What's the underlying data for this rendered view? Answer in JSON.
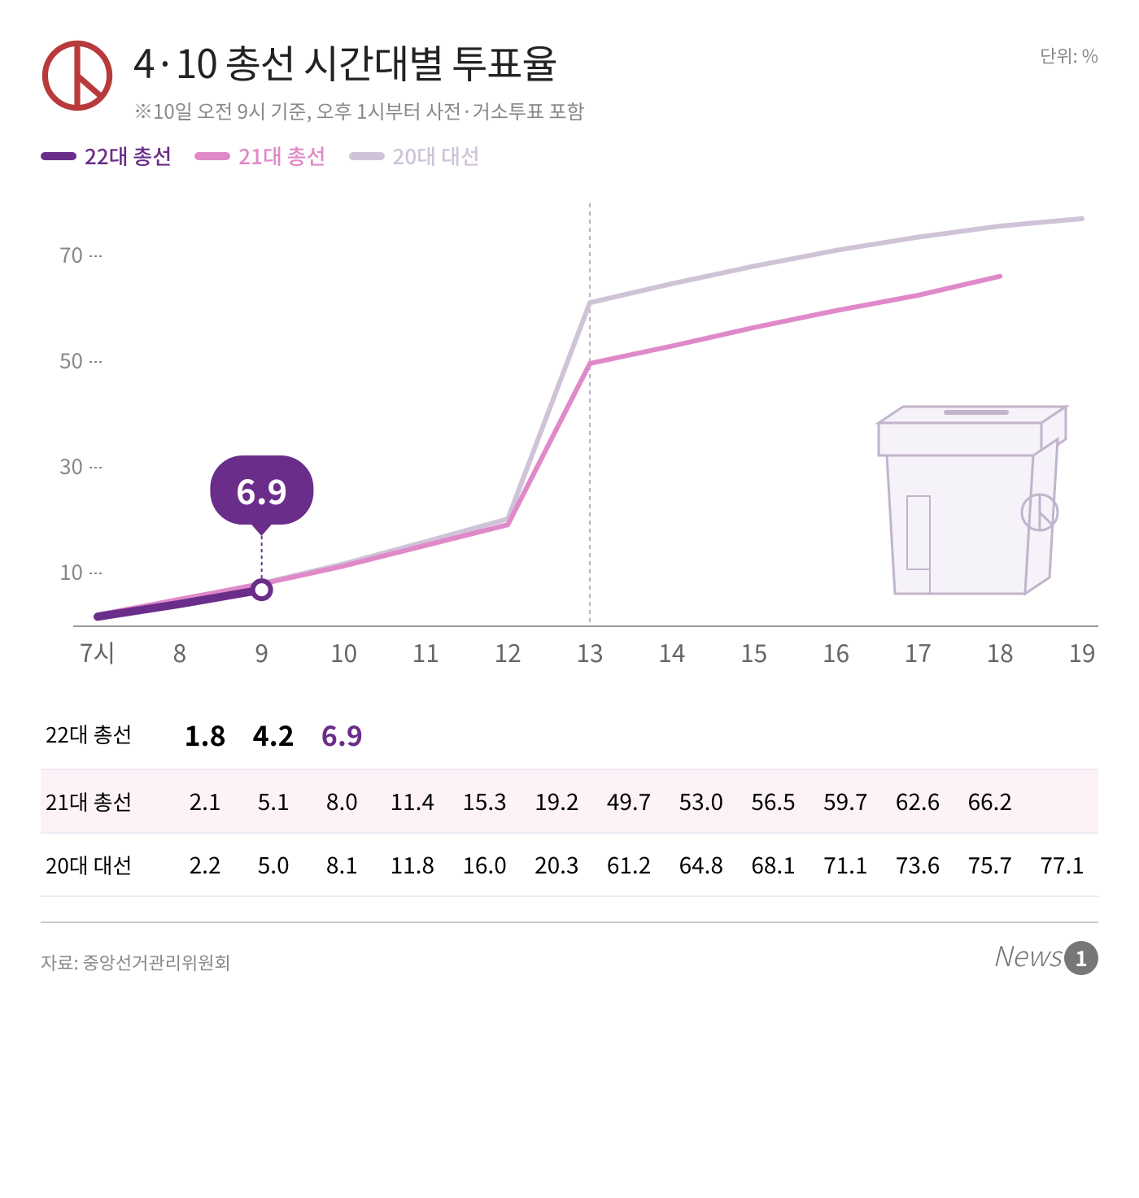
{
  "header": {
    "title": "4·10 총선 시간대별 투표율",
    "subtitle": "※10일 오전 9시 기준, 오후 1시부터 사전·거소투표 포함",
    "unit": "단위: %"
  },
  "legend": [
    {
      "label": "22대 총선",
      "color": "#6a2d8a"
    },
    {
      "label": "21대 총선",
      "color": "#e089c8"
    },
    {
      "label": "20대 대선",
      "color": "#cfc3d8"
    }
  ],
  "chart": {
    "type": "line",
    "x_categories": [
      "7시",
      "8",
      "9",
      "10",
      "11",
      "12",
      "13",
      "14",
      "15",
      "16",
      "17",
      "18",
      "19"
    ],
    "ylim": [
      0,
      80
    ],
    "yticks": [
      10,
      30,
      50,
      70
    ],
    "grid_color": "#e8e8e8",
    "axis_color": "#888",
    "background": "#ffffff",
    "vline_at_index": 6,
    "vline_color": "#bfb2c9",
    "series": [
      {
        "name": "20대 대선",
        "color": "#cfc3d8",
        "width": 6,
        "values": [
          2.2,
          5.0,
          8.1,
          11.8,
          16.0,
          20.3,
          61.2,
          64.8,
          68.1,
          71.1,
          73.6,
          75.7,
          77.1
        ]
      },
      {
        "name": "21대 총선",
        "color": "#e089c8",
        "width": 6,
        "values": [
          2.1,
          5.1,
          8.0,
          11.4,
          15.3,
          19.2,
          49.7,
          53.0,
          56.5,
          59.7,
          62.6,
          66.2
        ]
      },
      {
        "name": "22대 총선",
        "color": "#6a2d8a",
        "width": 10,
        "values": [
          1.8,
          4.2,
          6.9
        ]
      }
    ],
    "callout": {
      "value": "6.9",
      "series_index": 2,
      "point_index": 2,
      "marker_stroke": "#6a2d8a",
      "marker_fill": "#ffffff"
    },
    "ballot_box_stroke": "#b8a8c4",
    "ballot_box_fill": "#f5f0f8"
  },
  "table": {
    "columns": [
      "7시",
      "8",
      "9",
      "10",
      "11",
      "12",
      "13",
      "14",
      "15",
      "16",
      "17",
      "18",
      "19"
    ],
    "rows": [
      {
        "label": "22대 총선",
        "class": "row-22",
        "bg": "#ffffff",
        "values": [
          "1.8",
          "4.2",
          "6.9",
          "",
          "",
          "",
          "",
          "",
          "",
          "",
          "",
          "",
          ""
        ],
        "current_index": 2
      },
      {
        "label": "21대 총선",
        "class": "row-21",
        "bg": "#fcf2f8",
        "values": [
          "2.1",
          "5.1",
          "8.0",
          "11.4",
          "15.3",
          "19.2",
          "49.7",
          "53.0",
          "56.5",
          "59.7",
          "62.6",
          "66.2",
          ""
        ]
      },
      {
        "label": "20대 대선",
        "class": "row-20",
        "bg": "#ffffff",
        "values": [
          "2.2",
          "5.0",
          "8.1",
          "11.8",
          "16.0",
          "20.3",
          "61.2",
          "64.8",
          "68.1",
          "71.1",
          "73.6",
          "75.7",
          "77.1"
        ]
      }
    ]
  },
  "footer": {
    "source": "자료: 중앙선거관리위원회",
    "logo_text": "News",
    "logo_num": "1"
  },
  "stamp_color": "#b83a3a"
}
